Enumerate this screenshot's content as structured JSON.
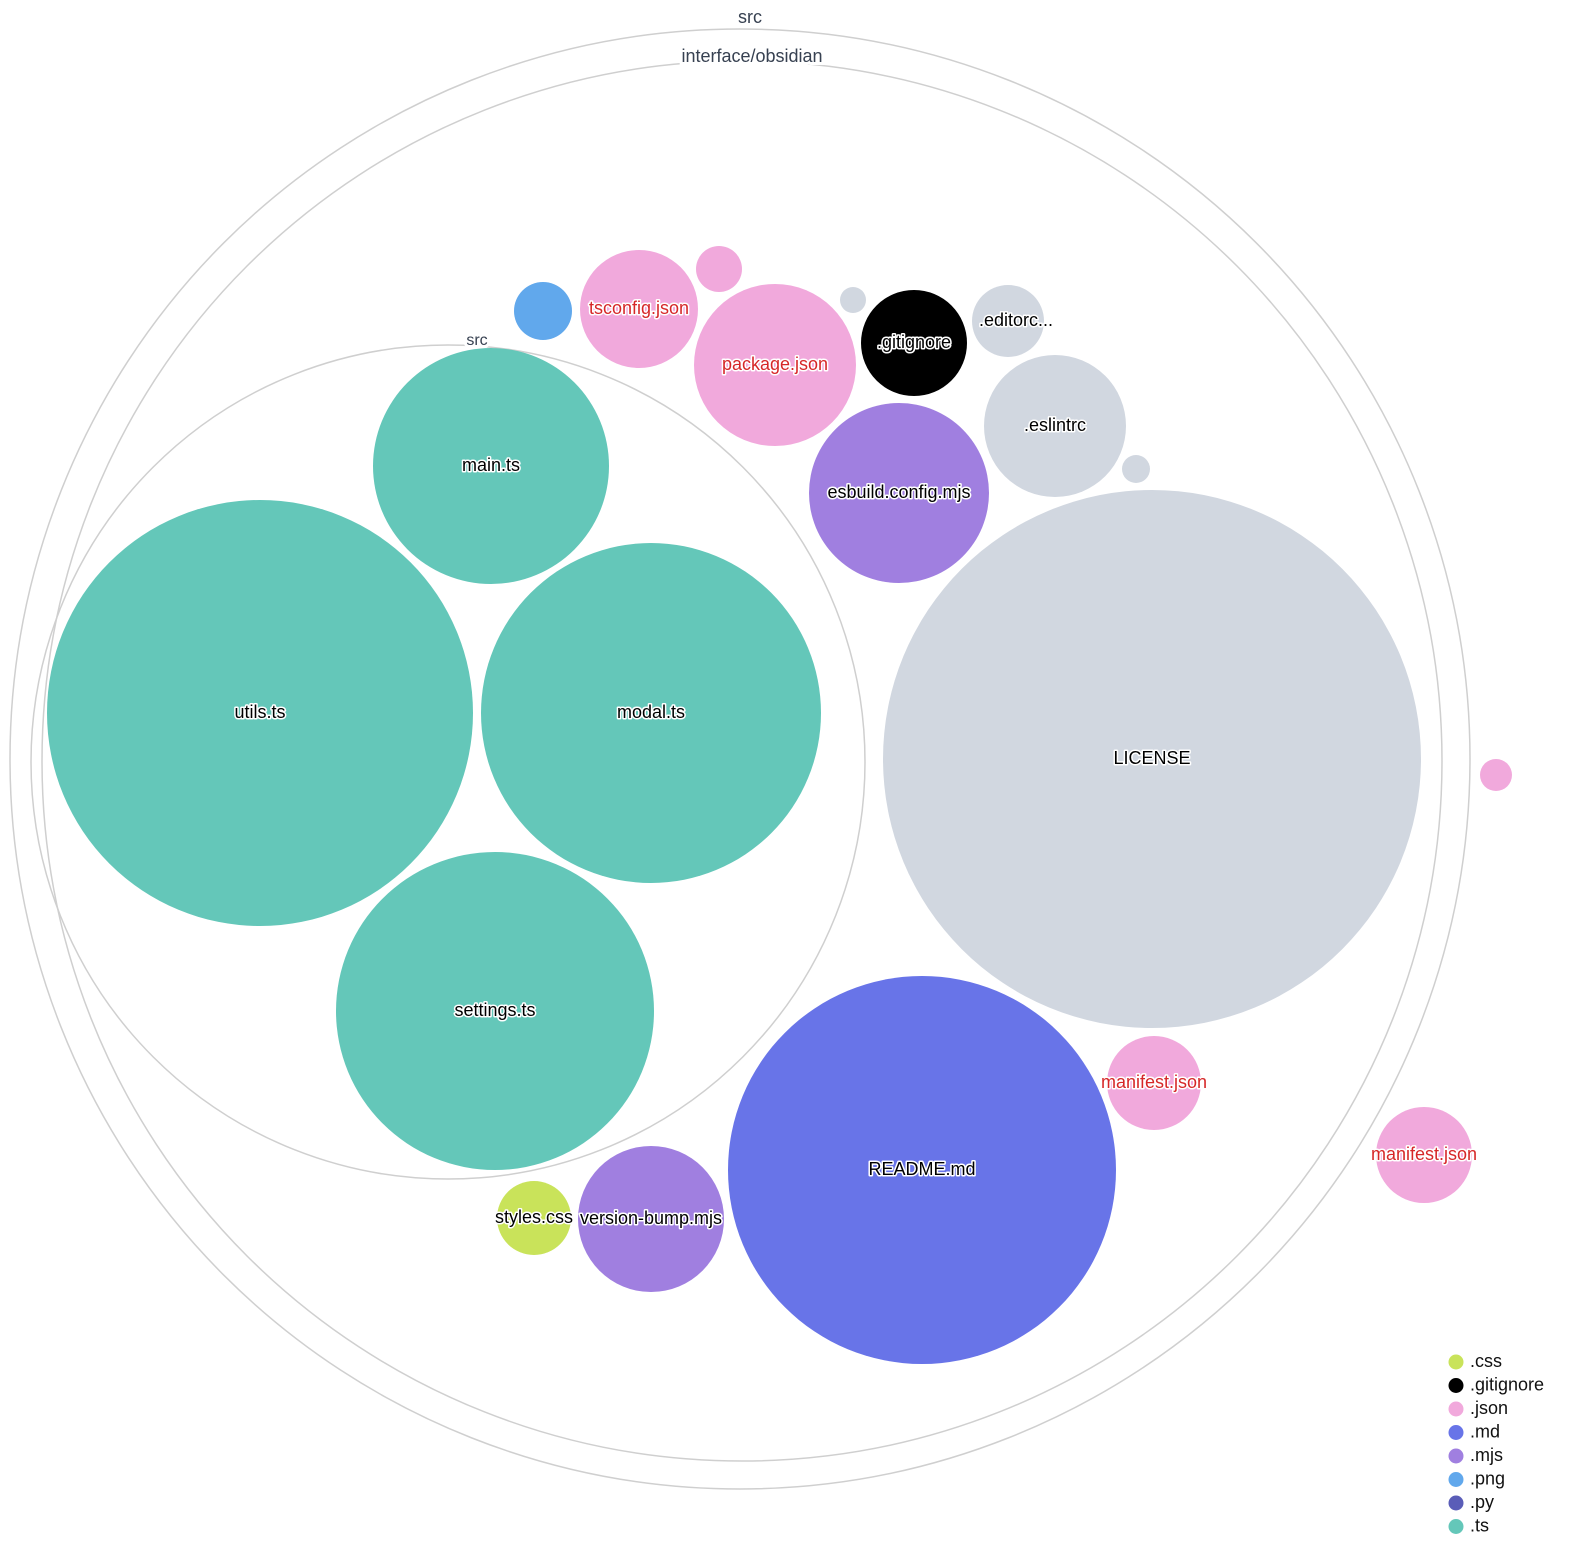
{
  "folders": [
    {
      "label": "src"
    },
    {
      "label": "interface/obsidian"
    },
    {
      "label": "src"
    }
  ],
  "files": [
    {
      "label": "main.ts",
      "ext": ".ts"
    },
    {
      "label": "utils.ts",
      "ext": ".ts"
    },
    {
      "label": "modal.ts",
      "ext": ".ts"
    },
    {
      "label": "settings.ts",
      "ext": ".ts"
    },
    {
      "label": "LICENSE",
      "ext": ""
    },
    {
      "label": "README.md",
      "ext": ".md"
    },
    {
      "label": "esbuild.config.mjs",
      "ext": ".mjs"
    },
    {
      "label": ".eslintrc",
      "ext": ""
    },
    {
      "label": "package.json",
      "ext": ".json"
    },
    {
      "label": "tsconfig.json",
      "ext": ".json"
    },
    {
      "label": "",
      "ext": ".json"
    },
    {
      "label": "",
      "ext": ".png"
    },
    {
      "label": "",
      "ext": ""
    },
    {
      "label": ".gitignore",
      "ext": ".gitignore"
    },
    {
      "label": ".editorc...",
      "ext": ""
    },
    {
      "label": "",
      "ext": ""
    },
    {
      "label": "manifest.json",
      "ext": ".json"
    },
    {
      "label": "manifest.json",
      "ext": ".json"
    },
    {
      "label": "",
      "ext": ".json"
    },
    {
      "label": "styles.css",
      "ext": ".css"
    },
    {
      "label": "version-bump.mjs",
      "ext": ".mjs"
    }
  ],
  "colors": {
    ".css": "#c9e35a",
    ".gitignore": "#000000",
    ".json": "#f1a9dc",
    ".md": "#6874e8",
    ".mjs": "#a07fe0",
    ".png": "#61a8ec",
    ".py": "#5a5db8",
    ".ts": "#64c7b9",
    "": "#d1d7e0",
    "highlight_label": "#d62728"
  },
  "legend": [
    ".css",
    ".gitignore",
    ".json",
    ".md",
    ".mjs",
    ".png",
    ".py",
    ".ts"
  ]
}
